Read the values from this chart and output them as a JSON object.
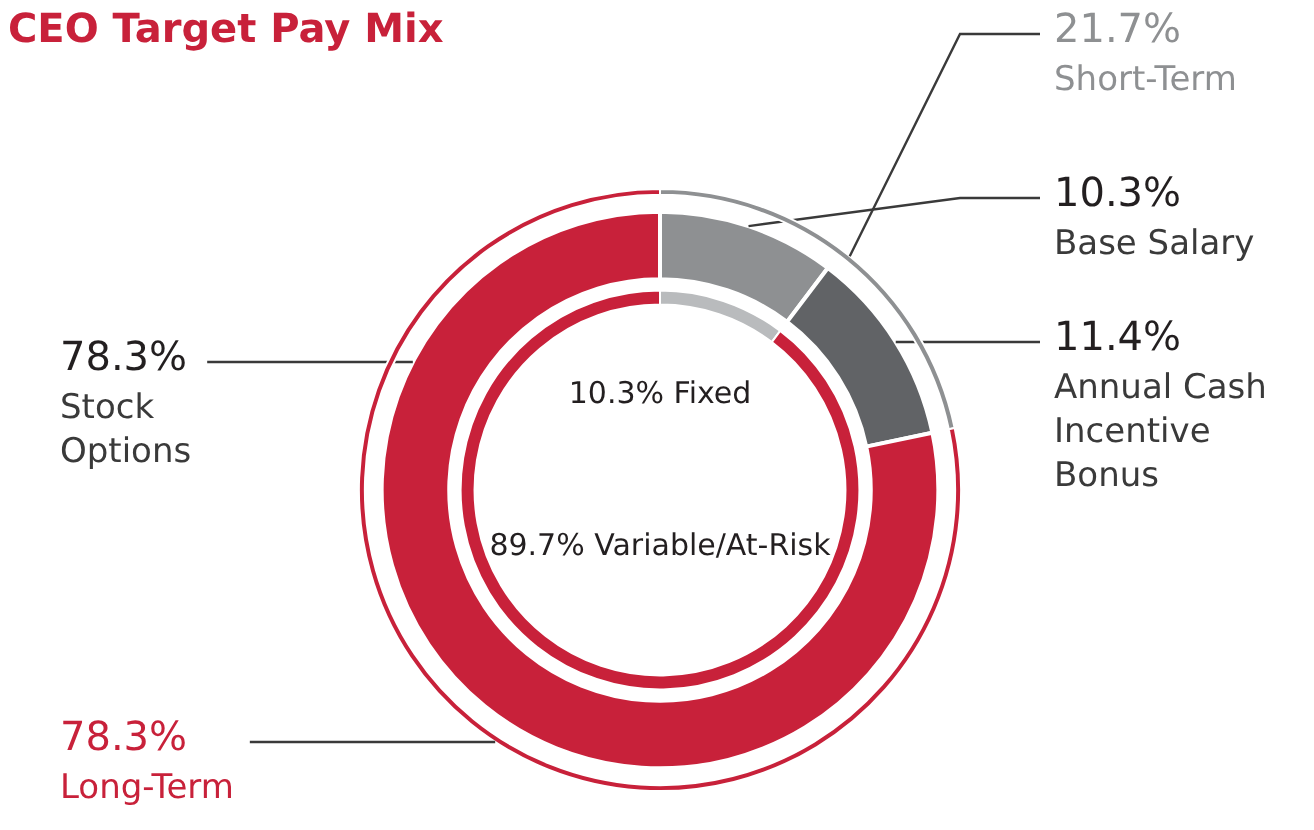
{
  "chart_data": [
    {
      "type": "donut",
      "title": "CEO Target Pay Mix",
      "categories": [
        "Base Salary",
        "Annual Cash Incentive Bonus",
        "Stock Options"
      ],
      "values": [
        10.3,
        11.4,
        78.3
      ],
      "colors": [
        "#8e9092",
        "#616366",
        "#c8213a"
      ],
      "value_labels": [
        "10.3%",
        "11.4%",
        "78.3%"
      ]
    },
    {
      "type": "donut",
      "categories": [
        "Fixed",
        "Variable/At-Risk"
      ],
      "values": [
        10.3,
        89.7
      ],
      "colors": [
        "#b9bbbd",
        "#c8213a"
      ],
      "value_labels": [
        "10.3%",
        "89.7%"
      ]
    },
    {
      "type": "donut",
      "categories": [
        "Short-Term",
        "Long-Term"
      ],
      "values": [
        21.7,
        78.3
      ],
      "colors": [
        "#8e9092",
        "#c8213a"
      ],
      "value_labels": [
        "21.7%",
        "78.3%"
      ]
    }
  ]
}
